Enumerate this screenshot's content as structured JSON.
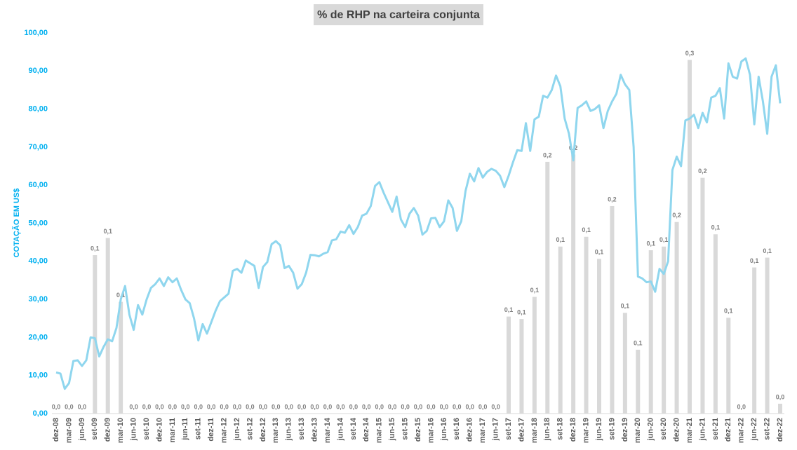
{
  "chart_data": {
    "type": "combo",
    "title": "% de RHP na carteira conjunta",
    "y_label": "COTAÇÃO EM US$",
    "categories": [
      "dez-08",
      null,
      null,
      "mar-09",
      null,
      null,
      "jun-09",
      null,
      null,
      "set-09",
      null,
      null,
      "dez-09",
      null,
      null,
      "mar-10",
      null,
      null,
      "jun-10",
      null,
      null,
      "set-10",
      null,
      null,
      "dez-10",
      null,
      null,
      "mar-11",
      null,
      null,
      "jun-11",
      null,
      null,
      "set-11",
      null,
      null,
      "dez-11",
      null,
      null,
      "mar-12",
      null,
      null,
      "jun-12",
      null,
      null,
      "set-12",
      null,
      null,
      "dez-12",
      null,
      null,
      "mar-13",
      null,
      null,
      "jun-13",
      null,
      null,
      "set-13",
      null,
      null,
      "dez-13",
      null,
      null,
      "mar-14",
      null,
      null,
      "jun-14",
      null,
      null,
      "set-14",
      null,
      null,
      "dez-14",
      null,
      null,
      "mar-15",
      null,
      null,
      "jun-15",
      null,
      null,
      "set-15",
      null,
      null,
      "dez-15",
      null,
      null,
      "mar-16",
      null,
      null,
      "jun-16",
      null,
      null,
      "set-16",
      null,
      null,
      "dez-16",
      null,
      null,
      "mar-17",
      null,
      null,
      "jun-17",
      null,
      null,
      "set-17",
      null,
      null,
      "dez-17",
      null,
      null,
      "mar-18",
      null,
      null,
      "jun-18",
      null,
      null,
      "set-18",
      null,
      null,
      "dez-18",
      null,
      null,
      "mar-19",
      null,
      null,
      "jun-19",
      null,
      null,
      "set-19",
      null,
      null,
      "dez-19",
      null,
      null,
      "mar-20",
      null,
      null,
      "jun-20",
      null,
      null,
      "set-20",
      null,
      null,
      "dez-20",
      null,
      null,
      "mar-21",
      null,
      null,
      "jun-21",
      null,
      null,
      "set-21",
      null,
      null,
      "dez-21",
      null,
      null,
      "mar-22",
      null,
      null,
      "jun-22",
      null,
      null,
      "set-22",
      null,
      null,
      "dez-22"
    ],
    "series": [
      {
        "type": "bar",
        "axis": "y2",
        "color": "#d9d9d9",
        "values": [
          0,
          null,
          null,
          0,
          null,
          null,
          0,
          null,
          null,
          0.129,
          null,
          null,
          0.143,
          null,
          null,
          0.091,
          null,
          null,
          0,
          null,
          null,
          0,
          null,
          null,
          0,
          null,
          null,
          0,
          null,
          null,
          0,
          null,
          null,
          0,
          null,
          null,
          0,
          null,
          null,
          0,
          null,
          null,
          0,
          null,
          null,
          0,
          null,
          null,
          0,
          null,
          null,
          0,
          null,
          null,
          0,
          null,
          null,
          0,
          null,
          null,
          0,
          null,
          null,
          0,
          null,
          null,
          0,
          null,
          null,
          0,
          null,
          null,
          0,
          null,
          null,
          0,
          null,
          null,
          0,
          null,
          null,
          0,
          null,
          null,
          0,
          null,
          null,
          0,
          null,
          null,
          0,
          null,
          null,
          0,
          null,
          null,
          0,
          null,
          null,
          0,
          null,
          null,
          0,
          null,
          null,
          0.079,
          null,
          null,
          0.077,
          null,
          null,
          0.095,
          null,
          null,
          0.205,
          null,
          null,
          0.136,
          null,
          null,
          0.211,
          null,
          null,
          0.144,
          null,
          null,
          0.126,
          null,
          null,
          0.169,
          null,
          null,
          0.082,
          null,
          null,
          0.052,
          null,
          null,
          0.133,
          null,
          null,
          0.136,
          null,
          null,
          0.156,
          null,
          null,
          0.288,
          null,
          null,
          0.192,
          null,
          null,
          0.146,
          null,
          null,
          0.078,
          null,
          null,
          0,
          null,
          null,
          0.119,
          null,
          null,
          0.127,
          null,
          null,
          0.008
        ],
        "value_labels": [
          "0,0",
          null,
          null,
          "0,0",
          null,
          null,
          "0,0",
          null,
          null,
          "0,1",
          null,
          null,
          "0,1",
          null,
          null,
          "0,1",
          null,
          null,
          "0,0",
          null,
          null,
          "0,0",
          null,
          null,
          "0,0",
          null,
          null,
          "0,0",
          null,
          null,
          "0,0",
          null,
          null,
          "0,0",
          null,
          null,
          "0,0",
          null,
          null,
          "0,0",
          null,
          null,
          "0,0",
          null,
          null,
          "0,0",
          null,
          null,
          "0,0",
          null,
          null,
          "0,0",
          null,
          null,
          "0,0",
          null,
          null,
          "0,0",
          null,
          null,
          "0,0",
          null,
          null,
          "0,0",
          null,
          null,
          "0,0",
          null,
          null,
          "0,0",
          null,
          null,
          "0,0",
          null,
          null,
          "0,0",
          null,
          null,
          "0,0",
          null,
          null,
          "0,0",
          null,
          null,
          "0,0",
          null,
          null,
          "0,0",
          null,
          null,
          "0,0",
          null,
          null,
          "0,0",
          null,
          null,
          "0,0",
          null,
          null,
          "0,0",
          null,
          null,
          "0,0",
          null,
          null,
          "0,1",
          null,
          null,
          "0,1",
          null,
          null,
          "0,1",
          null,
          null,
          "0,2",
          null,
          null,
          "0,1",
          null,
          null,
          "0,2",
          null,
          null,
          "0,1",
          null,
          null,
          "0,1",
          null,
          null,
          "0,2",
          null,
          null,
          "0,1",
          null,
          null,
          "0,1",
          null,
          null,
          "0,1",
          null,
          null,
          "0,1",
          null,
          null,
          "0,2",
          null,
          null,
          "0,3",
          null,
          null,
          "0,2",
          null,
          null,
          "0,1",
          null,
          null,
          "0,1",
          null,
          null,
          "0,0",
          null,
          null,
          "0,1",
          null,
          null,
          "0,1",
          null,
          null,
          "0,0"
        ]
      },
      {
        "type": "line",
        "color": "#8fd6ee",
        "values": [
          10.8,
          10.5,
          6.5,
          8,
          13.8,
          14,
          12.5,
          14,
          20,
          19.8,
          15,
          17.5,
          19.5,
          19,
          22.5,
          30,
          33.5,
          26,
          22,
          28.5,
          26,
          30,
          33,
          34,
          35.5,
          33.5,
          35.8,
          34.5,
          35.5,
          32.5,
          30,
          29,
          25,
          19.2,
          23.5,
          21,
          24,
          27,
          29.5,
          30.5,
          31.5,
          37.5,
          38,
          37,
          40.2,
          39.5,
          38.8,
          33,
          38.5,
          39.8,
          44.5,
          45.3,
          44.2,
          38.2,
          38.8,
          37,
          32.8,
          34,
          37,
          41.7,
          41.6,
          41.3,
          42,
          42.4,
          45.5,
          45.8,
          47.8,
          47.5,
          49.5,
          47.2,
          49,
          52,
          52.5,
          54.5,
          59.8,
          60.8,
          58,
          55.5,
          53,
          57,
          51,
          49,
          52.5,
          54,
          52,
          47,
          48,
          51.3,
          51.4,
          49,
          50.5,
          56,
          54,
          48,
          50.5,
          58.5,
          63,
          61,
          64.5,
          62,
          63.5,
          64.3,
          63.8,
          62.5,
          59.5,
          62.5,
          66,
          69.2,
          69,
          76.3,
          69,
          77.3,
          78,
          83.5,
          83,
          85,
          88.8,
          86,
          77.5,
          73.5,
          66.5,
          80.3,
          81,
          82,
          79.5,
          80,
          81,
          75,
          79.5,
          82,
          84,
          89,
          86.5,
          85,
          70,
          36,
          35.5,
          34.5,
          34.7,
          32,
          38,
          36.7,
          40,
          64,
          67.5,
          65,
          77,
          77.5,
          78.5,
          75,
          79,
          76.5,
          83,
          83.5,
          85.5,
          77.5,
          92,
          88.5,
          88,
          92.5,
          93.3,
          89,
          76,
          88.5,
          82,
          73.5,
          88.5,
          91.5,
          81.5
        ]
      }
    ],
    "ylim": [
      0,
      100
    ],
    "yticks": [
      {
        "value": 0,
        "label": "0,00"
      },
      {
        "value": 10,
        "label": "10,00"
      },
      {
        "value": 20,
        "label": "20,00"
      },
      {
        "value": 30,
        "label": "30,00"
      },
      {
        "value": 40,
        "label": "40,00"
      },
      {
        "value": 50,
        "label": "50,00"
      },
      {
        "value": 60,
        "label": "60,00"
      },
      {
        "value": 70,
        "label": "70,00"
      },
      {
        "value": 80,
        "label": "80,00"
      },
      {
        "value": 90,
        "label": "90,00"
      },
      {
        "value": 100,
        "label": "100,00"
      }
    ],
    "y2lim": [
      0,
      0.31
    ],
    "grid": false
  }
}
